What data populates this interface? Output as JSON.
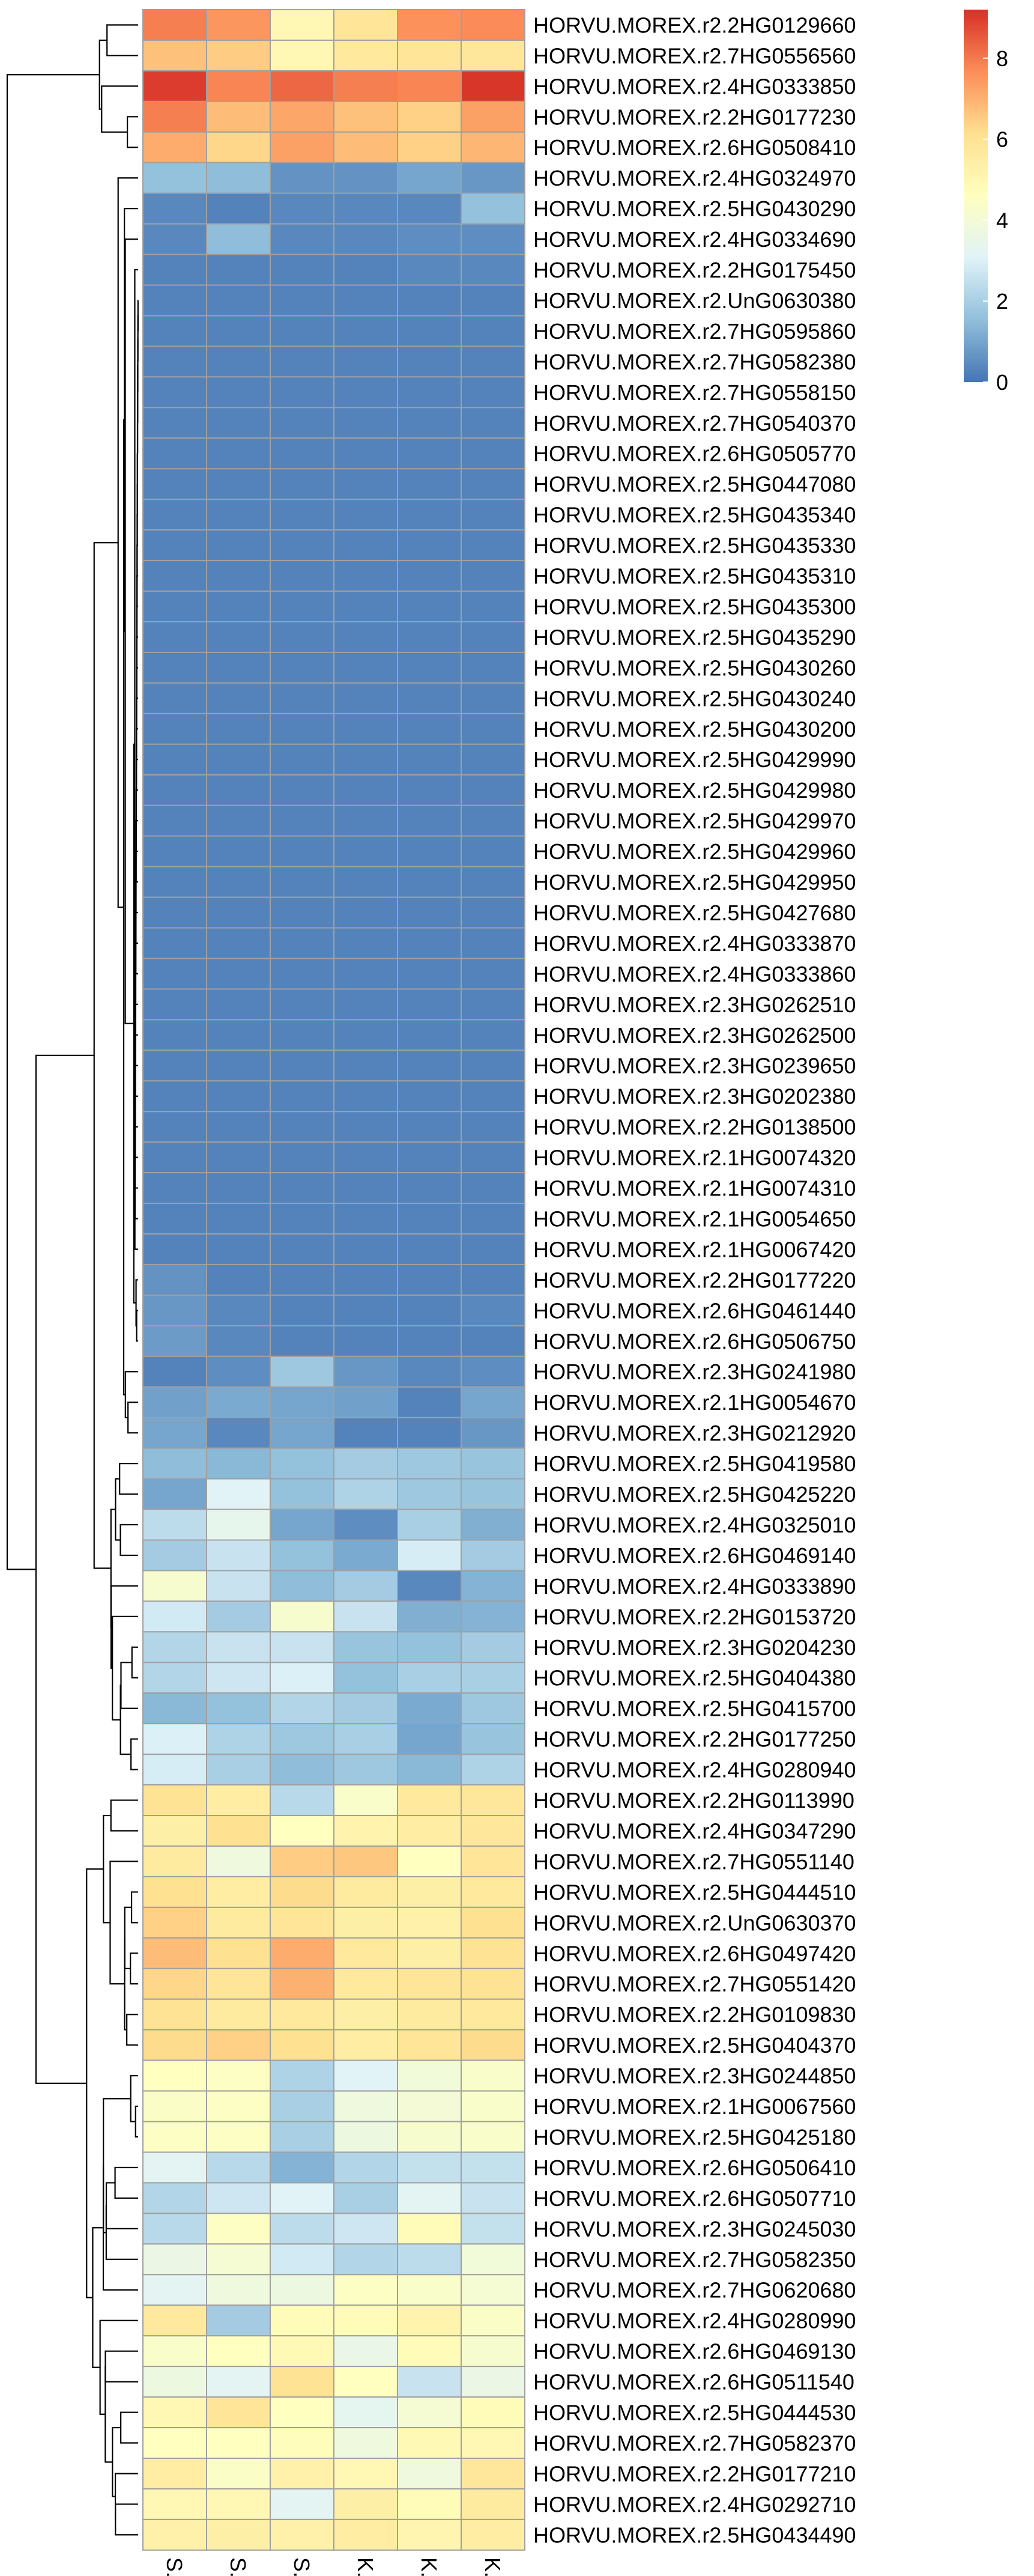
{
  "chart_data": {
    "type": "heatmap",
    "title": "",
    "xlabel": "",
    "ylabel": "",
    "columns": [
      "S.C",
      "S.A",
      "S.B",
      "K.B",
      "K.A",
      "K.C"
    ],
    "rows": [
      "HORVU.MOREX.r2.2HG0129660",
      "HORVU.MOREX.r2.7HG0556560",
      "HORVU.MOREX.r2.4HG0333850",
      "HORVU.MOREX.r2.2HG0177230",
      "HORVU.MOREX.r2.6HG0508410",
      "HORVU.MOREX.r2.4HG0324970",
      "HORVU.MOREX.r2.5HG0430290",
      "HORVU.MOREX.r2.4HG0334690",
      "HORVU.MOREX.r2.2HG0175450",
      "HORVU.MOREX.r2.UnG0630380",
      "HORVU.MOREX.r2.7HG0595860",
      "HORVU.MOREX.r2.7HG0582380",
      "HORVU.MOREX.r2.7HG0558150",
      "HORVU.MOREX.r2.7HG0540370",
      "HORVU.MOREX.r2.6HG0505770",
      "HORVU.MOREX.r2.5HG0447080",
      "HORVU.MOREX.r2.5HG0435340",
      "HORVU.MOREX.r2.5HG0435330",
      "HORVU.MOREX.r2.5HG0435310",
      "HORVU.MOREX.r2.5HG0435300",
      "HORVU.MOREX.r2.5HG0435290",
      "HORVU.MOREX.r2.5HG0430260",
      "HORVU.MOREX.r2.5HG0430240",
      "HORVU.MOREX.r2.5HG0430200",
      "HORVU.MOREX.r2.5HG0429990",
      "HORVU.MOREX.r2.5HG0429980",
      "HORVU.MOREX.r2.5HG0429970",
      "HORVU.MOREX.r2.5HG0429960",
      "HORVU.MOREX.r2.5HG0429950",
      "HORVU.MOREX.r2.5HG0427680",
      "HORVU.MOREX.r2.4HG0333870",
      "HORVU.MOREX.r2.4HG0333860",
      "HORVU.MOREX.r2.3HG0262510",
      "HORVU.MOREX.r2.3HG0262500",
      "HORVU.MOREX.r2.3HG0239650",
      "HORVU.MOREX.r2.3HG0202380",
      "HORVU.MOREX.r2.2HG0138500",
      "HORVU.MOREX.r2.1HG0074320",
      "HORVU.MOREX.r2.1HG0074310",
      "HORVU.MOREX.r2.1HG0054650",
      "HORVU.MOREX.r2.1HG0067420",
      "HORVU.MOREX.r2.2HG0177220",
      "HORVU.MOREX.r2.6HG0461440",
      "HORVU.MOREX.r2.6HG0506750",
      "HORVU.MOREX.r2.3HG0241980",
      "HORVU.MOREX.r2.1HG0054670",
      "HORVU.MOREX.r2.3HG0212920",
      "HORVU.MOREX.r2.5HG0419580",
      "HORVU.MOREX.r2.5HG0425220",
      "HORVU.MOREX.r2.4HG0325010",
      "HORVU.MOREX.r2.6HG0469140",
      "HORVU.MOREX.r2.4HG0333890",
      "HORVU.MOREX.r2.2HG0153720",
      "HORVU.MOREX.r2.3HG0204230",
      "HORVU.MOREX.r2.5HG0404380",
      "HORVU.MOREX.r2.5HG0415700",
      "HORVU.MOREX.r2.2HG0177250",
      "HORVU.MOREX.r2.4HG0280940",
      "HORVU.MOREX.r2.2HG0113990",
      "HORVU.MOREX.r2.4HG0347290",
      "HORVU.MOREX.r2.7HG0551140",
      "HORVU.MOREX.r2.5HG0444510",
      "HORVU.MOREX.r2.UnG0630370",
      "HORVU.MOREX.r2.6HG0497420",
      "HORVU.MOREX.r2.7HG0551420",
      "HORVU.MOREX.r2.2HG0109830",
      "HORVU.MOREX.r2.5HG0404370",
      "HORVU.MOREX.r2.3HG0244850",
      "HORVU.MOREX.r2.1HG0067560",
      "HORVU.MOREX.r2.5HG0425180",
      "HORVU.MOREX.r2.6HG0506410",
      "HORVU.MOREX.r2.6HG0507710",
      "HORVU.MOREX.r2.3HG0245030",
      "HORVU.MOREX.r2.7HG0582350",
      "HORVU.MOREX.r2.7HG0620680",
      "HORVU.MOREX.r2.4HG0280990",
      "HORVU.MOREX.r2.6HG0469130",
      "HORVU.MOREX.r2.6HG0511540",
      "HORVU.MOREX.r2.5HG0444530",
      "HORVU.MOREX.r2.7HG0582370",
      "HORVU.MOREX.r2.2HG0177210",
      "HORVU.MOREX.r2.4HG0292710",
      "HORVU.MOREX.r2.5HG0434490"
    ],
    "values": [
      [
        7.9,
        7.5,
        5.0,
        5.9,
        7.6,
        7.7
      ],
      [
        6.7,
        6.5,
        5.0,
        5.7,
        5.9,
        5.8
      ],
      [
        9.0,
        7.8,
        8.3,
        7.9,
        7.8,
        9.1
      ],
      [
        7.9,
        6.8,
        7.2,
        6.7,
        6.4,
        7.3
      ],
      [
        7.1,
        6.3,
        7.3,
        6.8,
        6.4,
        6.9
      ],
      [
        1.6,
        1.5,
        0.6,
        0.6,
        1.0,
        0.7
      ],
      [
        0.4,
        0.3,
        0.4,
        0.4,
        0.4,
        1.6
      ],
      [
        0.4,
        1.5,
        0.4,
        0.4,
        0.5,
        0.5
      ],
      [
        0.3,
        0.3,
        0.3,
        0.3,
        0.4,
        0.4
      ],
      [
        0.3,
        0.3,
        0.3,
        0.3,
        0.3,
        0.3
      ],
      [
        0.3,
        0.3,
        0.3,
        0.3,
        0.3,
        0.3
      ],
      [
        0.3,
        0.3,
        0.3,
        0.3,
        0.3,
        0.3
      ],
      [
        0.3,
        0.3,
        0.3,
        0.3,
        0.3,
        0.3
      ],
      [
        0.3,
        0.3,
        0.3,
        0.3,
        0.3,
        0.3
      ],
      [
        0.3,
        0.3,
        0.3,
        0.3,
        0.3,
        0.3
      ],
      [
        0.3,
        0.3,
        0.3,
        0.3,
        0.3,
        0.3
      ],
      [
        0.3,
        0.3,
        0.3,
        0.3,
        0.3,
        0.3
      ],
      [
        0.3,
        0.3,
        0.3,
        0.3,
        0.3,
        0.3
      ],
      [
        0.3,
        0.3,
        0.3,
        0.3,
        0.3,
        0.3
      ],
      [
        0.3,
        0.3,
        0.3,
        0.3,
        0.3,
        0.3
      ],
      [
        0.3,
        0.3,
        0.3,
        0.3,
        0.3,
        0.3
      ],
      [
        0.3,
        0.3,
        0.3,
        0.3,
        0.3,
        0.3
      ],
      [
        0.3,
        0.3,
        0.3,
        0.3,
        0.3,
        0.3
      ],
      [
        0.3,
        0.3,
        0.3,
        0.3,
        0.3,
        0.3
      ],
      [
        0.3,
        0.3,
        0.3,
        0.3,
        0.3,
        0.3
      ],
      [
        0.3,
        0.3,
        0.3,
        0.3,
        0.3,
        0.3
      ],
      [
        0.3,
        0.3,
        0.3,
        0.3,
        0.3,
        0.3
      ],
      [
        0.3,
        0.3,
        0.3,
        0.3,
        0.3,
        0.3
      ],
      [
        0.3,
        0.3,
        0.3,
        0.3,
        0.3,
        0.3
      ],
      [
        0.3,
        0.3,
        0.3,
        0.3,
        0.3,
        0.3
      ],
      [
        0.3,
        0.3,
        0.3,
        0.3,
        0.3,
        0.3
      ],
      [
        0.3,
        0.3,
        0.3,
        0.3,
        0.3,
        0.3
      ],
      [
        0.3,
        0.3,
        0.3,
        0.3,
        0.3,
        0.3
      ],
      [
        0.3,
        0.3,
        0.3,
        0.3,
        0.3,
        0.3
      ],
      [
        0.3,
        0.3,
        0.3,
        0.3,
        0.3,
        0.3
      ],
      [
        0.3,
        0.3,
        0.3,
        0.3,
        0.3,
        0.3
      ],
      [
        0.3,
        0.3,
        0.3,
        0.3,
        0.3,
        0.3
      ],
      [
        0.3,
        0.3,
        0.3,
        0.3,
        0.3,
        0.3
      ],
      [
        0.3,
        0.3,
        0.3,
        0.3,
        0.3,
        0.3
      ],
      [
        0.3,
        0.3,
        0.3,
        0.3,
        0.3,
        0.3
      ],
      [
        0.3,
        0.3,
        0.3,
        0.3,
        0.3,
        0.3
      ],
      [
        0.6,
        0.3,
        0.3,
        0.3,
        0.3,
        0.3
      ],
      [
        0.7,
        0.4,
        0.3,
        0.3,
        0.3,
        0.4
      ],
      [
        0.8,
        0.4,
        0.3,
        0.3,
        0.3,
        0.3
      ],
      [
        0.3,
        0.5,
        1.8,
        0.7,
        0.4,
        0.5
      ],
      [
        0.9,
        1.1,
        1.0,
        0.9,
        0.3,
        1.0
      ],
      [
        1.0,
        0.4,
        1.0,
        0.3,
        0.3,
        0.7
      ],
      [
        1.5,
        1.4,
        1.6,
        1.9,
        1.8,
        1.7
      ],
      [
        1.0,
        3.1,
        1.6,
        2.1,
        1.8,
        1.7
      ],
      [
        2.4,
        3.4,
        1.0,
        0.5,
        2.0,
        1.2
      ],
      [
        1.9,
        2.6,
        1.6,
        1.1,
        2.9,
        1.9
      ],
      [
        4.2,
        2.6,
        1.5,
        1.9,
        0.4,
        1.3
      ],
      [
        2.8,
        1.9,
        4.2,
        2.6,
        1.2,
        1.3
      ],
      [
        2.2,
        2.6,
        2.6,
        1.7,
        1.6,
        1.9
      ],
      [
        2.2,
        2.7,
        3.0,
        1.6,
        2.0,
        2.0
      ],
      [
        1.4,
        1.6,
        2.2,
        1.9,
        1.1,
        1.8
      ],
      [
        3.0,
        2.1,
        1.8,
        2.0,
        1.0,
        1.7
      ],
      [
        2.9,
        2.0,
        1.5,
        1.8,
        1.4,
        2.1
      ],
      [
        6.0,
        5.5,
        2.3,
        4.3,
        5.7,
        5.8
      ],
      [
        5.4,
        6.1,
        4.6,
        5.2,
        5.5,
        5.8
      ],
      [
        5.6,
        3.8,
        6.5,
        6.6,
        4.6,
        5.9
      ],
      [
        6.1,
        5.5,
        6.2,
        5.6,
        5.4,
        5.7
      ],
      [
        6.4,
        5.6,
        5.9,
        5.4,
        5.3,
        6.1
      ],
      [
        6.8,
        6.1,
        7.1,
        5.7,
        5.4,
        6.0
      ],
      [
        6.3,
        5.9,
        7.0,
        5.7,
        5.9,
        6.0
      ],
      [
        6.0,
        5.6,
        5.7,
        5.4,
        5.6,
        5.7
      ],
      [
        6.2,
        6.4,
        6.1,
        5.5,
        5.9,
        6.2
      ],
      [
        4.6,
        4.5,
        2.1,
        3.1,
        3.9,
        4.3
      ],
      [
        4.4,
        4.5,
        2.0,
        3.8,
        4.0,
        4.3
      ],
      [
        4.5,
        4.5,
        2.0,
        3.7,
        4.2,
        4.3
      ],
      [
        3.2,
        2.3,
        1.3,
        2.2,
        2.5,
        2.5
      ],
      [
        2.2,
        2.7,
        3.1,
        2.0,
        3.2,
        2.6
      ],
      [
        2.3,
        4.5,
        2.4,
        2.7,
        4.8,
        2.5
      ],
      [
        3.6,
        4.1,
        2.8,
        2.2,
        2.4,
        3.9
      ],
      [
        3.2,
        3.8,
        3.7,
        4.5,
        4.3,
        4.1
      ],
      [
        5.7,
        1.9,
        4.8,
        4.8,
        5.2,
        4.4
      ],
      [
        4.3,
        4.6,
        4.9,
        3.5,
        4.8,
        4.2
      ],
      [
        3.7,
        3.2,
        6.0,
        4.6,
        2.6,
        3.6
      ],
      [
        5.0,
        5.9,
        4.6,
        3.3,
        4.1,
        4.8
      ],
      [
        4.6,
        4.6,
        4.7,
        3.8,
        4.9,
        5.0
      ],
      [
        5.5,
        4.4,
        5.3,
        5.0,
        3.8,
        5.8
      ],
      [
        5.0,
        5.0,
        3.2,
        5.4,
        4.8,
        5.6
      ],
      [
        5.3,
        5.4,
        5.3,
        5.5,
        5.1,
        5.5
      ]
    ],
    "color_scale": {
      "min": 0,
      "max": 9.2,
      "stops": [
        {
          "value": 0,
          "color": "#4575b4"
        },
        {
          "value": 1.54,
          "color": "#91bfdb"
        },
        {
          "value": 3.07,
          "color": "#e0f3f8"
        },
        {
          "value": 4.6,
          "color": "#ffffbf"
        },
        {
          "value": 6.13,
          "color": "#fee090"
        },
        {
          "value": 7.67,
          "color": "#fc8d59"
        },
        {
          "value": 9.2,
          "color": "#d73027"
        }
      ],
      "legend_ticks": [
        0,
        2,
        4,
        6,
        8
      ]
    },
    "cell_border_color": "#a0a0a0",
    "row_dendrogram": [
      [
        5,
        10,
        8,
        11,
        0.1,
        0.1
      ],
      [
        6,
        7,
        10,
        12,
        0.1,
        0.1
      ],
      [
        4,
        3,
        13,
        14,
        0.1,
        0.1
      ],
      [
        6,
        5,
        15,
        16,
        0.1,
        0.1
      ],
      [
        3,
        11,
        17,
        18,
        0.1,
        0.1
      ],
      [
        3,
        12,
        19,
        20,
        0.1,
        0.1
      ],
      [
        11,
        14,
        21,
        22,
        0.1,
        0.1
      ],
      [
        2,
        5,
        22,
        24,
        0.1,
        0.1
      ]
    ],
    "dendrogram_branches": "see script"
  }
}
